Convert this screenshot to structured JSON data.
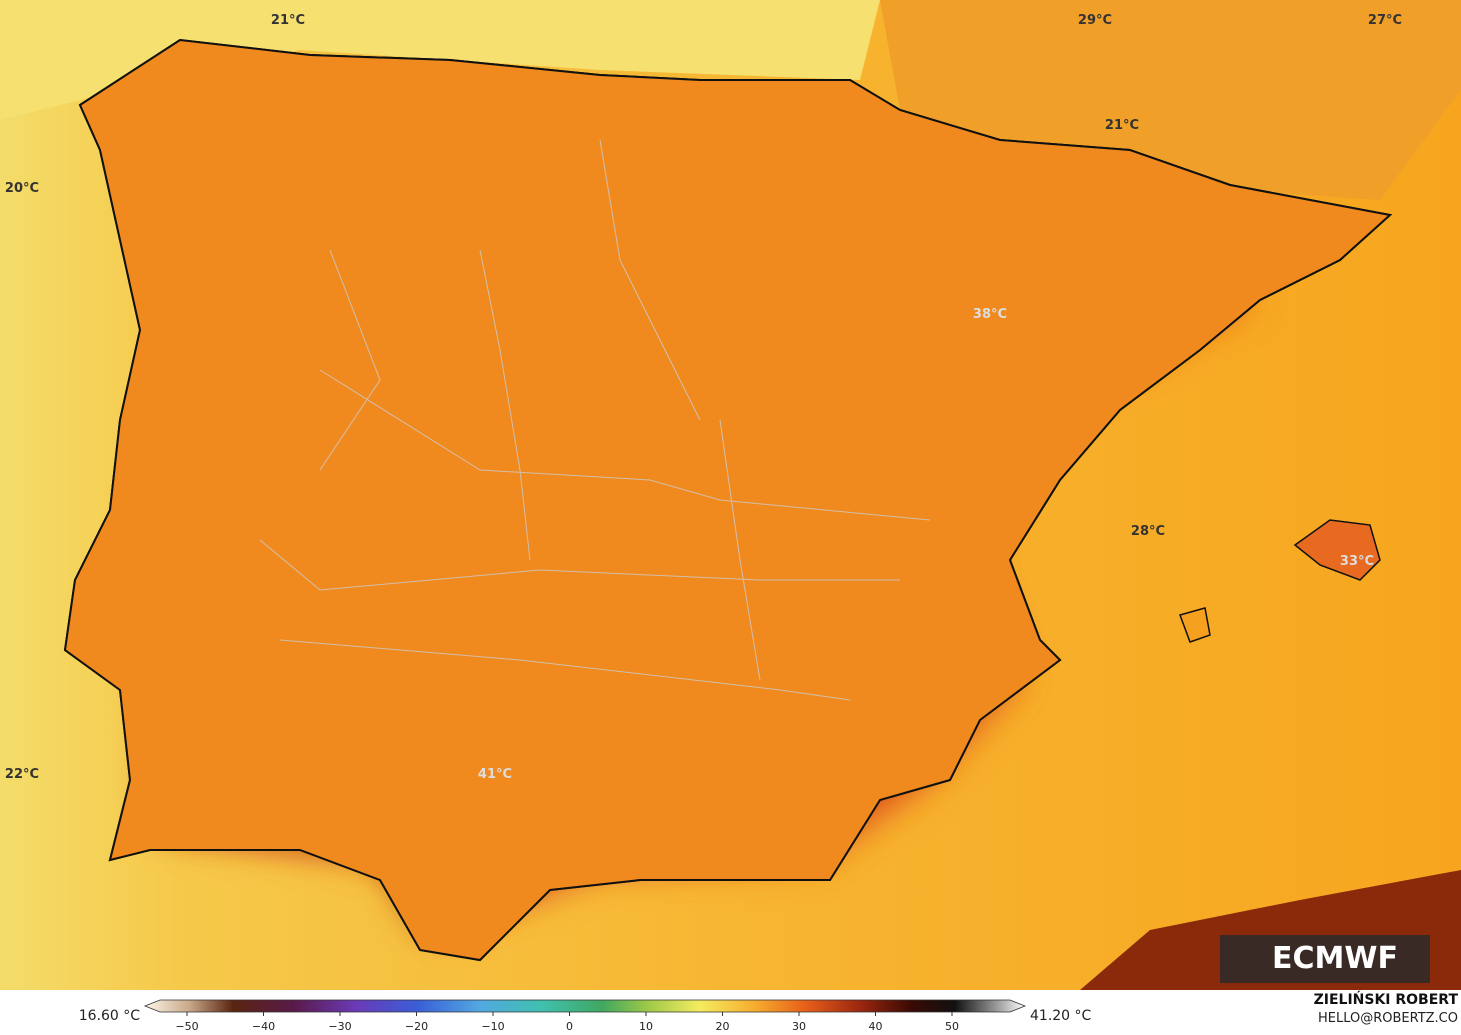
{
  "map_labels": [
    "21°C",
    "29°C",
    "27°C",
    "21°C",
    "20°C",
    "38°C",
    "28°C",
    "33°C",
    "22°C",
    "41°C"
  ],
  "colorbar": {
    "min_label": "16.60 °C",
    "max_label": "41.20 °C",
    "ticks": [
      {
        "value": -50,
        "label": "−50"
      },
      {
        "value": -40,
        "label": "−40"
      },
      {
        "value": -30,
        "label": "−30"
      },
      {
        "value": -20,
        "label": "−20"
      },
      {
        "value": -10,
        "label": "−10"
      },
      0,
      10,
      20,
      30,
      40,
      50
    ]
  },
  "logo": "ECMWF",
  "author": "ZIELIŃSKI ROBERT",
  "website": "HELLO@ROBERTZ.CO"
}
